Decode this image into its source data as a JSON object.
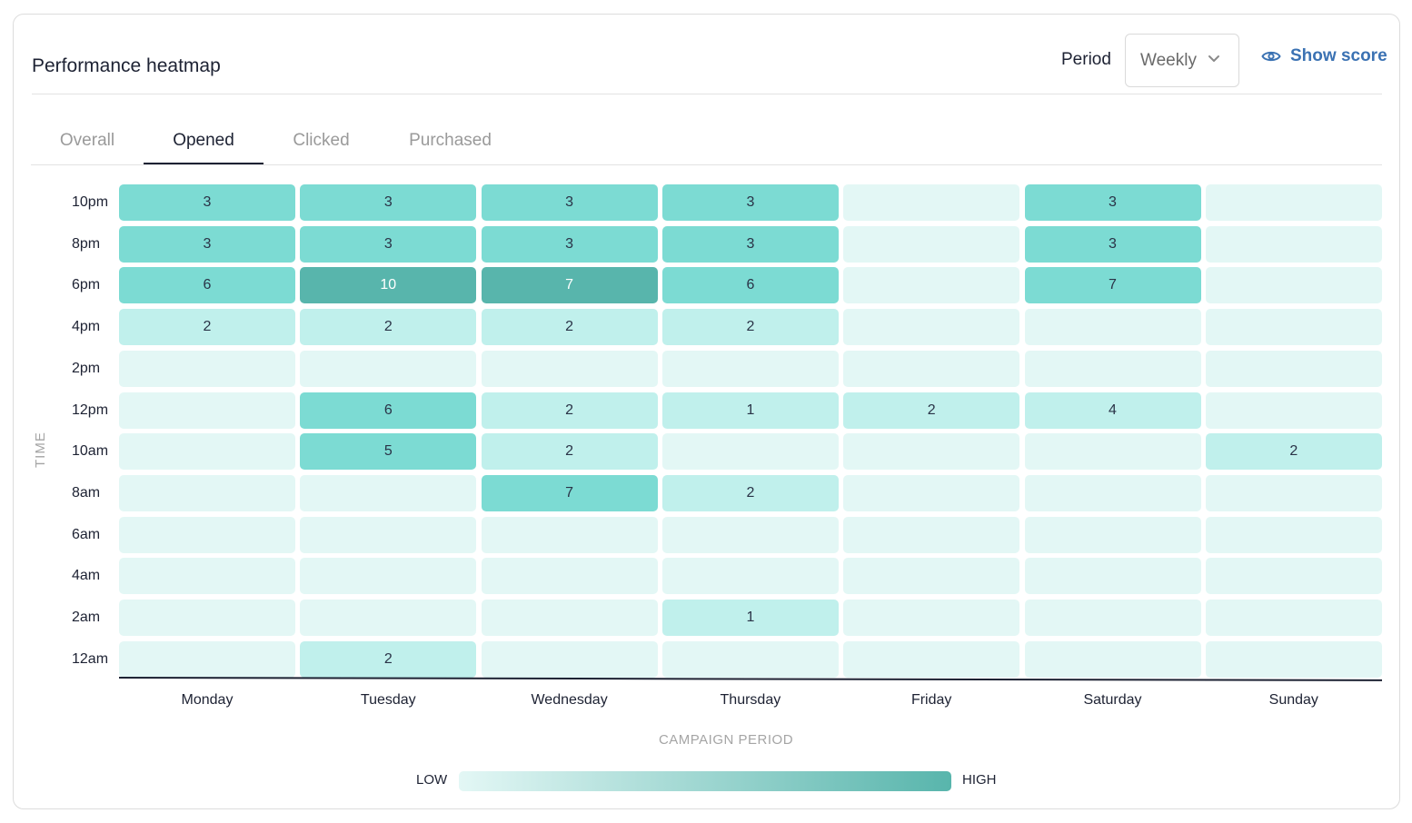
{
  "header": {
    "title": "Performance heatmap",
    "period_label": "Period",
    "period_value": "Weekly",
    "show_score_label": "Show score",
    "accent_color": "#3b72b3"
  },
  "tabs": [
    {
      "label": "Overall",
      "active": false
    },
    {
      "label": "Opened",
      "active": true
    },
    {
      "label": "Clicked",
      "active": false
    },
    {
      "label": "Purchased",
      "active": false
    }
  ],
  "chart_data": {
    "type": "heatmap",
    "title": "Performance heatmap",
    "xlabel": "CAMPAIGN PERIOD",
    "ylabel": "TIME",
    "x": [
      "Monday",
      "Tuesday",
      "Wednesday",
      "Thursday",
      "Friday",
      "Saturday",
      "Sunday"
    ],
    "y": [
      "10pm",
      "8pm",
      "6pm",
      "4pm",
      "2pm",
      "12pm",
      "10am",
      "8am",
      "6am",
      "4am",
      "2am",
      "12am"
    ],
    "values": [
      [
        3,
        3,
        3,
        3,
        null,
        3,
        null
      ],
      [
        3,
        3,
        3,
        3,
        null,
        3,
        null
      ],
      [
        6,
        10,
        7,
        6,
        null,
        7,
        null
      ],
      [
        2,
        2,
        2,
        2,
        null,
        null,
        null
      ],
      [
        null,
        null,
        null,
        null,
        null,
        null,
        null
      ],
      [
        null,
        6,
        2,
        1,
        2,
        4,
        null
      ],
      [
        null,
        5,
        2,
        null,
        null,
        null,
        2
      ],
      [
        null,
        null,
        7,
        2,
        null,
        null,
        null
      ],
      [
        null,
        null,
        null,
        null,
        null,
        null,
        null
      ],
      [
        null,
        null,
        null,
        null,
        null,
        null,
        null
      ],
      [
        null,
        null,
        null,
        1,
        null,
        null,
        null
      ],
      [
        null,
        2,
        null,
        null,
        null,
        null,
        null
      ]
    ],
    "intensity_levels": [
      [
        2,
        2,
        2,
        2,
        0,
        2,
        0
      ],
      [
        2,
        2,
        2,
        2,
        0,
        2,
        0
      ],
      [
        2,
        3,
        3,
        2,
        0,
        2,
        0
      ],
      [
        1,
        1,
        1,
        1,
        0,
        0,
        0
      ],
      [
        0,
        0,
        0,
        0,
        0,
        0,
        0
      ],
      [
        0,
        2,
        1,
        1,
        1,
        1,
        0
      ],
      [
        0,
        2,
        1,
        0,
        0,
        0,
        1
      ],
      [
        0,
        0,
        2,
        1,
        0,
        0,
        0
      ],
      [
        0,
        0,
        0,
        0,
        0,
        0,
        0
      ],
      [
        0,
        0,
        0,
        0,
        0,
        0,
        0
      ],
      [
        0,
        0,
        0,
        1,
        0,
        0,
        0
      ],
      [
        0,
        1,
        0,
        0,
        0,
        0,
        0
      ]
    ],
    "level_colors": [
      "#e3f7f5",
      "#c0f0ec",
      "#7cdbd3",
      "#58b5ac"
    ],
    "legend": {
      "low_label": "LOW",
      "high_label": "HIGH",
      "gradient": [
        "#e3f7f5",
        "#58b5ac"
      ],
      "placement": "bottom"
    }
  }
}
